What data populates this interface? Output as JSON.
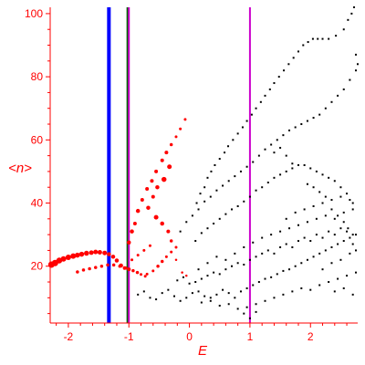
{
  "chart_data": {
    "type": "scatter",
    "xlabel": "E",
    "ylabel": "<n>",
    "xlim": [
      -2.3,
      2.78
    ],
    "ylim": [
      2,
      102
    ],
    "x_ticks": [
      {
        "value": -2,
        "label": "-2"
      },
      {
        "value": -1,
        "label": "-1"
      },
      {
        "value": 0,
        "label": "0"
      },
      {
        "value": 1,
        "label": "1"
      },
      {
        "value": 2,
        "label": "2"
      }
    ],
    "y_ticks": [
      {
        "value": 20,
        "label": "20"
      },
      {
        "value": 40,
        "label": "40"
      },
      {
        "value": 60,
        "label": "60"
      },
      {
        "value": 80,
        "label": "80"
      },
      {
        "value": 100,
        "label": "100"
      }
    ],
    "vertical_lines": [
      {
        "x": -1.33,
        "color": "#0000ff"
      },
      {
        "x": -1.02,
        "color": "#006400"
      },
      {
        "x": -1.0,
        "color": "#cc00cc"
      },
      {
        "x": 1.0,
        "color": "#cc00cc"
      }
    ],
    "colors": {
      "axis": "#ff0000",
      "red_points": "#ff0000",
      "black_points": "#000000"
    },
    "red_series": [
      [
        -2.28,
        20.5,
        6
      ],
      [
        -2.22,
        21,
        6
      ],
      [
        -2.15,
        21.8,
        5.5
      ],
      [
        -2.08,
        22.3,
        5
      ],
      [
        -2.0,
        22.8,
        5
      ],
      [
        -1.92,
        23.2,
        5
      ],
      [
        -1.85,
        23.5,
        4.5
      ],
      [
        -1.78,
        23.8,
        4.5
      ],
      [
        -1.7,
        24.1,
        4.5
      ],
      [
        -1.62,
        24.3,
        4
      ],
      [
        -1.55,
        24.5,
        4
      ],
      [
        -1.48,
        24.4,
        4
      ],
      [
        -1.4,
        24.2,
        4
      ],
      [
        -1.33,
        23.8,
        3.5
      ],
      [
        -1.26,
        23.0,
        3.5
      ],
      [
        -1.2,
        21.8,
        3.5
      ],
      [
        -1.13,
        20.2,
        3.5
      ],
      [
        -1.07,
        19.4,
        3
      ],
      [
        -1.0,
        19.0,
        3
      ],
      [
        -0.93,
        18.6,
        2.5
      ],
      [
        -0.86,
        18.0,
        2.5
      ],
      [
        -0.8,
        17.4,
        2
      ],
      [
        -0.73,
        16.8,
        2
      ],
      [
        -1.85,
        18.2,
        2.5
      ],
      [
        -1.75,
        18.8,
        2.5
      ],
      [
        -1.65,
        19.2,
        2.5
      ],
      [
        -1.55,
        19.6,
        2.5
      ],
      [
        -1.45,
        20.0,
        2.5
      ],
      [
        -1.35,
        20.4,
        2.5
      ],
      [
        -1.25,
        20.4,
        2.5
      ],
      [
        -1.15,
        20.0,
        2.5
      ],
      [
        -1.05,
        19.4,
        2.5
      ],
      [
        -1.0,
        27.5,
        3.5
      ],
      [
        -0.95,
        31,
        3.5
      ],
      [
        -0.9,
        33.5,
        3
      ],
      [
        -0.85,
        37.5,
        3.5
      ],
      [
        -0.78,
        41,
        3
      ],
      [
        -0.7,
        44.5,
        3
      ],
      [
        -0.62,
        47,
        3
      ],
      [
        -0.55,
        50,
        3
      ],
      [
        -0.45,
        53.5,
        3
      ],
      [
        -0.38,
        56,
        3
      ],
      [
        -0.3,
        58.5,
        2.5
      ],
      [
        -0.22,
        61,
        2
      ],
      [
        -0.15,
        63.5,
        2
      ],
      [
        -0.07,
        66.5,
        2
      ],
      [
        -0.42,
        47.5,
        4.5
      ],
      [
        -0.33,
        51.5,
        4
      ],
      [
        -0.53,
        45,
        3.5
      ],
      [
        -0.6,
        42,
        3
      ],
      [
        -0.68,
        38.5,
        3.5
      ],
      [
        -0.55,
        35.5,
        4
      ],
      [
        -0.45,
        33.5,
        3.5
      ],
      [
        -0.35,
        31,
        3
      ],
      [
        -0.3,
        28,
        2.5
      ],
      [
        -0.22,
        26,
        2
      ],
      [
        -0.95,
        22,
        2
      ],
      [
        -0.85,
        23.5,
        2
      ],
      [
        -0.75,
        25,
        2
      ],
      [
        -0.65,
        26.5,
        2
      ],
      [
        -0.52,
        20,
        2.5
      ],
      [
        -0.45,
        21.5,
        2.5
      ],
      [
        -0.38,
        23,
        2
      ],
      [
        -0.3,
        24.5,
        2
      ],
      [
        -0.22,
        22,
        1.5
      ],
      [
        -0.12,
        18,
        1.5
      ],
      [
        -0.05,
        17,
        1.5
      ],
      [
        -0.6,
        18.5,
        2
      ],
      [
        -0.7,
        17.5,
        2
      ]
    ],
    "black_series": [
      [
        0.12,
        40
      ],
      [
        0.18,
        43
      ],
      [
        0.25,
        45
      ],
      [
        0.3,
        48
      ],
      [
        0.36,
        50
      ],
      [
        0.42,
        52
      ],
      [
        0.5,
        54
      ],
      [
        0.58,
        56
      ],
      [
        0.64,
        58
      ],
      [
        0.72,
        60
      ],
      [
        0.8,
        62
      ],
      [
        0.88,
        64
      ],
      [
        0.95,
        66
      ],
      [
        1.03,
        68
      ],
      [
        1.1,
        70
      ],
      [
        1.18,
        72
      ],
      [
        1.25,
        74
      ],
      [
        1.33,
        76
      ],
      [
        1.4,
        78
      ],
      [
        1.48,
        80
      ],
      [
        1.56,
        82
      ],
      [
        1.64,
        84
      ],
      [
        1.72,
        86
      ],
      [
        1.8,
        88
      ],
      [
        1.88,
        90
      ],
      [
        1.96,
        91
      ],
      [
        2.04,
        92
      ],
      [
        2.12,
        92
      ],
      [
        2.2,
        92
      ],
      [
        2.3,
        92
      ],
      [
        2.42,
        93
      ],
      [
        2.55,
        95
      ],
      [
        2.62,
        98
      ],
      [
        2.68,
        100
      ],
      [
        2.72,
        102
      ],
      [
        2.75,
        87
      ],
      [
        2.78,
        84
      ],
      [
        -0.15,
        31
      ],
      [
        -0.05,
        34
      ],
      [
        0.05,
        36
      ],
      [
        0.15,
        38
      ],
      [
        0.25,
        40.5
      ],
      [
        0.35,
        42
      ],
      [
        0.45,
        44
      ],
      [
        0.55,
        45.5
      ],
      [
        0.65,
        47
      ],
      [
        0.75,
        48.5
      ],
      [
        0.85,
        50
      ],
      [
        0.95,
        51.5
      ],
      [
        1.05,
        53
      ],
      [
        1.15,
        55
      ],
      [
        1.25,
        57
      ],
      [
        1.35,
        58.5
      ],
      [
        1.45,
        60
      ],
      [
        1.55,
        61.5
      ],
      [
        1.65,
        63
      ],
      [
        1.75,
        64
      ],
      [
        1.85,
        65
      ],
      [
        1.95,
        66
      ],
      [
        2.05,
        67
      ],
      [
        2.15,
        68
      ],
      [
        2.25,
        70
      ],
      [
        2.35,
        72
      ],
      [
        2.45,
        74
      ],
      [
        2.55,
        76
      ],
      [
        2.65,
        79
      ],
      [
        2.75,
        82
      ],
      [
        0.1,
        28
      ],
      [
        0.2,
        30.5
      ],
      [
        0.3,
        32
      ],
      [
        0.4,
        33.5
      ],
      [
        0.5,
        35
      ],
      [
        0.6,
        36.5
      ],
      [
        0.7,
        38
      ],
      [
        0.8,
        39
      ],
      [
        0.9,
        40.5
      ],
      [
        1.0,
        42
      ],
      [
        1.1,
        44
      ],
      [
        1.2,
        45
      ],
      [
        1.3,
        46.5
      ],
      [
        1.4,
        48
      ],
      [
        1.5,
        49
      ],
      [
        1.6,
        50
      ],
      [
        1.7,
        51
      ],
      [
        1.8,
        52
      ],
      [
        1.9,
        52
      ],
      [
        2.0,
        51
      ],
      [
        2.1,
        50
      ],
      [
        2.2,
        49
      ],
      [
        2.3,
        48
      ],
      [
        2.4,
        47
      ],
      [
        2.5,
        45
      ],
      [
        2.6,
        43
      ],
      [
        2.7,
        40
      ],
      [
        1.4,
        56
      ],
      [
        1.5,
        57.5
      ],
      [
        1.6,
        55
      ],
      [
        1.7,
        52.5
      ],
      [
        1.95,
        46
      ],
      [
        2.05,
        45
      ],
      [
        2.15,
        43.5
      ],
      [
        2.25,
        42
      ],
      [
        2.35,
        38
      ],
      [
        2.45,
        36
      ],
      [
        2.55,
        34
      ],
      [
        2.62,
        32
      ],
      [
        2.7,
        30
      ],
      [
        -0.85,
        11
      ],
      [
        -0.75,
        12
      ],
      [
        -0.65,
        10
      ],
      [
        -0.55,
        9.5
      ],
      [
        -0.45,
        11.5
      ],
      [
        -0.35,
        12.5
      ],
      [
        -0.25,
        10.5
      ],
      [
        -0.15,
        9
      ],
      [
        -0.05,
        10
      ],
      [
        0.05,
        11.5
      ],
      [
        0.15,
        12
      ],
      [
        0.25,
        10.5
      ],
      [
        0.35,
        10
      ],
      [
        0.45,
        11
      ],
      [
        0.55,
        12.5
      ],
      [
        0.65,
        11.5
      ],
      [
        0.75,
        10
      ],
      [
        0.85,
        12
      ],
      [
        0.95,
        13
      ],
      [
        1.05,
        14
      ],
      [
        1.15,
        15
      ],
      [
        1.25,
        16
      ],
      [
        1.35,
        16.5
      ],
      [
        1.45,
        17.5
      ],
      [
        1.55,
        18.5
      ],
      [
        1.65,
        19
      ],
      [
        1.75,
        20
      ],
      [
        1.85,
        21
      ],
      [
        1.95,
        22
      ],
      [
        2.05,
        23
      ],
      [
        2.15,
        24
      ],
      [
        2.25,
        25
      ],
      [
        2.35,
        26
      ],
      [
        2.45,
        27
      ],
      [
        2.55,
        28
      ],
      [
        2.65,
        29
      ],
      [
        2.75,
        30
      ],
      [
        -0.2,
        15.5
      ],
      [
        -0.1,
        16.5
      ],
      [
        0.0,
        14.5
      ],
      [
        0.1,
        15
      ],
      [
        0.2,
        16
      ],
      [
        0.3,
        17
      ],
      [
        0.4,
        18
      ],
      [
        0.5,
        17.5
      ],
      [
        0.6,
        19
      ],
      [
        0.7,
        20
      ],
      [
        0.8,
        21
      ],
      [
        0.9,
        20.5
      ],
      [
        1.0,
        22
      ],
      [
        1.1,
        23
      ],
      [
        1.2,
        24
      ],
      [
        1.3,
        25
      ],
      [
        1.4,
        24
      ],
      [
        1.5,
        26
      ],
      [
        1.6,
        27
      ],
      [
        1.7,
        26
      ],
      [
        1.8,
        28
      ],
      [
        1.9,
        29
      ],
      [
        2.0,
        28
      ],
      [
        2.1,
        30
      ],
      [
        2.2,
        29
      ],
      [
        2.3,
        31
      ],
      [
        2.4,
        30
      ],
      [
        2.5,
        32
      ],
      [
        2.6,
        31
      ],
      [
        2.7,
        27
      ],
      [
        0.15,
        19
      ],
      [
        0.3,
        21
      ],
      [
        0.45,
        23
      ],
      [
        0.6,
        22
      ],
      [
        0.75,
        24
      ],
      [
        0.9,
        26
      ],
      [
        1.05,
        27.5
      ],
      [
        1.2,
        29
      ],
      [
        1.35,
        30
      ],
      [
        1.5,
        31
      ],
      [
        1.65,
        32
      ],
      [
        1.8,
        33
      ],
      [
        1.95,
        34
      ],
      [
        2.1,
        35
      ],
      [
        2.25,
        36
      ],
      [
        2.4,
        35
      ],
      [
        2.55,
        37
      ],
      [
        2.7,
        38
      ],
      [
        0.2,
        8.5
      ],
      [
        0.35,
        9
      ],
      [
        0.5,
        7.5
      ],
      [
        0.65,
        8
      ],
      [
        0.8,
        6.5
      ],
      [
        0.95,
        7
      ],
      [
        1.1,
        8
      ],
      [
        1.25,
        9
      ],
      [
        1.4,
        10
      ],
      [
        1.55,
        11
      ],
      [
        1.7,
        12
      ],
      [
        1.85,
        13
      ],
      [
        2.0,
        12.5
      ],
      [
        2.15,
        14
      ],
      [
        2.3,
        15
      ],
      [
        2.45,
        16
      ],
      [
        2.6,
        17
      ],
      [
        2.75,
        18
      ],
      [
        1.0,
        3.5
      ],
      [
        0.9,
        5
      ],
      [
        1.1,
        5.5
      ],
      [
        2.4,
        12
      ],
      [
        2.55,
        13
      ],
      [
        2.7,
        11
      ],
      [
        2.2,
        19
      ],
      [
        2.35,
        21
      ],
      [
        2.5,
        22
      ],
      [
        2.65,
        24
      ],
      [
        2.75,
        25
      ],
      [
        1.6,
        35
      ],
      [
        1.75,
        37
      ],
      [
        1.9,
        38
      ],
      [
        2.05,
        39
      ],
      [
        2.2,
        40
      ],
      [
        2.35,
        41
      ],
      [
        2.5,
        42
      ],
      [
        2.65,
        41
      ]
    ]
  }
}
